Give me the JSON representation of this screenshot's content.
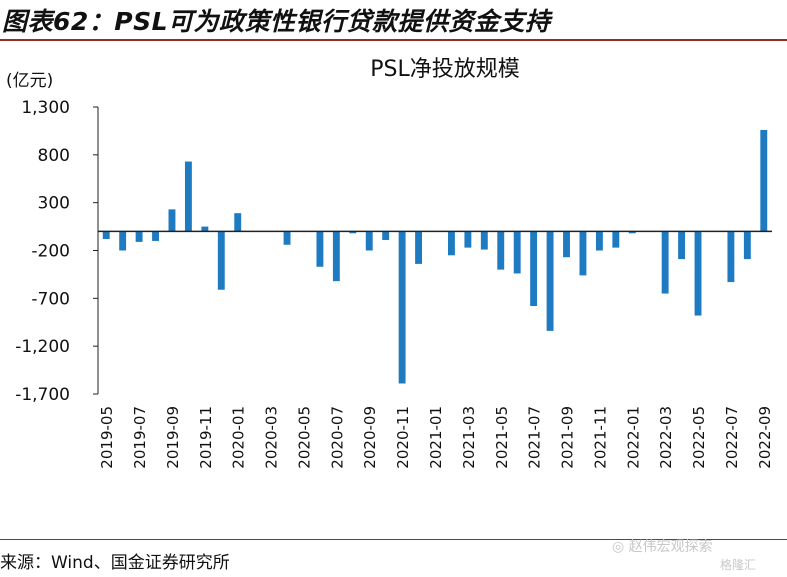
{
  "figure_title": "图表62：PSL可为政策性银行贷款提供资金支持",
  "source": "来源：Wind、国金证券研究所",
  "watermark": {
    "line1": "赵伟宏观探索",
    "line2": "格隆汇"
  },
  "colors": {
    "bar": "#1f7bc1",
    "rule": "#9b2a2a"
  },
  "chart_data": {
    "type": "bar",
    "title": "PSL净投放规模",
    "ylabel": "(亿元)",
    "ylim": [
      -1700,
      1300
    ],
    "yticks": [
      1300,
      800,
      300,
      -200,
      -700,
      -1200,
      -1700
    ],
    "ytick_labels": [
      "1,300",
      "800",
      "300",
      "-200",
      "-700",
      "-1,200",
      "-1,700"
    ],
    "categories": [
      "2019-05",
      "2019-06",
      "2019-07",
      "2019-08",
      "2019-09",
      "2019-10",
      "2019-11",
      "2019-12",
      "2020-01",
      "2020-02",
      "2020-03",
      "2020-04",
      "2020-05",
      "2020-06",
      "2020-07",
      "2020-08",
      "2020-09",
      "2020-10",
      "2020-11",
      "2020-12",
      "2021-01",
      "2021-02",
      "2021-03",
      "2021-04",
      "2021-05",
      "2021-06",
      "2021-07",
      "2021-08",
      "2021-09",
      "2021-10",
      "2021-11",
      "2021-12",
      "2022-01",
      "2022-02",
      "2022-03",
      "2022-04",
      "2022-05",
      "2022-06",
      "2022-07",
      "2022-08",
      "2022-09"
    ],
    "xtick_labels": [
      "2019-05",
      "2019-07",
      "2019-09",
      "2019-11",
      "2020-01",
      "2020-03",
      "2020-05",
      "2020-07",
      "2020-09",
      "2020-11",
      "2021-01",
      "2021-03",
      "2021-05",
      "2021-07",
      "2021-09",
      "2021-11",
      "2022-01",
      "2022-03",
      "2022-05",
      "2022-07",
      "2022-09"
    ],
    "values": [
      -80,
      -200,
      -110,
      -100,
      230,
      730,
      50,
      -610,
      190,
      0,
      0,
      -140,
      0,
      -370,
      -520,
      -20,
      -200,
      -90,
      -1590,
      -340,
      0,
      -250,
      -170,
      -190,
      -400,
      -440,
      -780,
      -1040,
      -270,
      -460,
      -200,
      -170,
      -20,
      0,
      -650,
      -290,
      -880,
      0,
      -530,
      -290,
      1060
    ],
    "series": [
      {
        "values_ref": "values"
      }
    ],
    "grid": false,
    "legend": "none"
  }
}
